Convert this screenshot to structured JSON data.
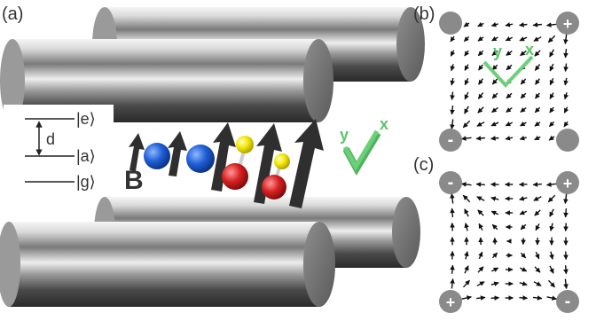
{
  "panel_labels": {
    "a": "(a)",
    "b": "(b)",
    "c": "(c)"
  },
  "level_diagram": {
    "excited": "|e⟩",
    "ancilla": "|a⟩",
    "ground": "|g⟩",
    "dipole": "d"
  },
  "field_label": "B",
  "axes_labels": {
    "x": "x",
    "y": "y"
  },
  "electrode_signs": {
    "b": {
      "top_right": "+",
      "bottom_left": "-"
    },
    "c": {
      "top_left": "-",
      "top_right": "+",
      "bottom_left": "+",
      "bottom_right": "-"
    }
  },
  "colors": {
    "rod": "#8c8c8c",
    "rod_dark": "#3a3a3a",
    "rod_light": "#f2f2f2",
    "blue_atom": "#1f5fd6",
    "red_atom": "#d82020",
    "yellow_atom": "#f2e600",
    "arrow": "#2f2f2f",
    "axes_green": "#6ccf7a",
    "electrode_grey": "#8a8a8a"
  },
  "icons": {
    "field_arrows": "up-arrow-icon",
    "axes": "xy-axes-icon"
  }
}
